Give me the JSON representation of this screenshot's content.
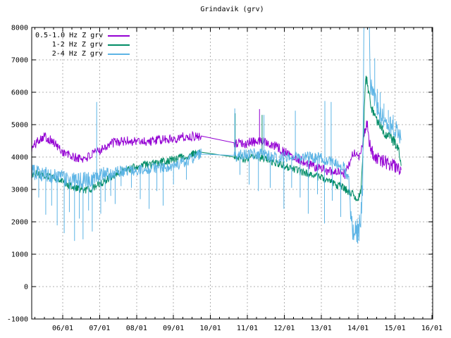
{
  "chart_data": {
    "type": "line",
    "title": "Grindavik (grv)",
    "xlabel": "",
    "ylabel": "",
    "grid": true,
    "legend_position": "top-left",
    "ylim": [
      -1000,
      8000
    ],
    "y_ticks": [
      -1000,
      0,
      1000,
      2000,
      3000,
      4000,
      5000,
      6000,
      7000,
      8000
    ],
    "xlim_days": [
      5.16,
      16.02
    ],
    "x_tick_days": [
      6,
      7,
      8,
      9,
      10,
      11,
      12,
      13,
      14,
      15,
      16
    ],
    "x_tick_labels": [
      "06/01",
      "07/01",
      "08/01",
      "09/01",
      "10/01",
      "11/01",
      "12/01",
      "13/01",
      "14/01",
      "15/01",
      "16/01"
    ],
    "x_minor_tick_step_days": 0.25,
    "data_gap_days": [
      9.75,
      10.64
    ],
    "series": [
      {
        "name": "0.5-1.0 Hz Z grv",
        "color": "#9400d3",
        "noise": 150,
        "noise_zones": [
          [
            14.3,
            15.18,
            210
          ]
        ],
        "baseline": [
          [
            5.16,
            4250
          ],
          [
            5.35,
            4550
          ],
          [
            5.5,
            4650
          ],
          [
            5.7,
            4500
          ],
          [
            6.0,
            4160
          ],
          [
            6.3,
            3980
          ],
          [
            6.55,
            3950
          ],
          [
            6.8,
            4060
          ],
          [
            7.1,
            4300
          ],
          [
            7.4,
            4460
          ],
          [
            7.8,
            4500
          ],
          [
            8.3,
            4480
          ],
          [
            8.8,
            4540
          ],
          [
            9.2,
            4610
          ],
          [
            9.75,
            4650
          ],
          [
            10.64,
            4440
          ],
          [
            10.9,
            4420
          ],
          [
            11.2,
            4470
          ],
          [
            11.5,
            4490
          ],
          [
            11.75,
            4350
          ],
          [
            12.0,
            4160
          ],
          [
            12.3,
            4000
          ],
          [
            12.6,
            3810
          ],
          [
            12.9,
            3660
          ],
          [
            13.2,
            3590
          ],
          [
            13.5,
            3500
          ],
          [
            13.65,
            3450
          ],
          [
            13.8,
            3950
          ],
          [
            13.9,
            4150
          ],
          [
            14.0,
            3950
          ],
          [
            14.1,
            4300
          ],
          [
            14.2,
            4900
          ],
          [
            14.25,
            5050
          ],
          [
            14.3,
            4420
          ],
          [
            14.38,
            4130
          ],
          [
            14.5,
            3960
          ],
          [
            14.7,
            3860
          ],
          [
            14.9,
            3760
          ],
          [
            15.05,
            3680
          ],
          [
            15.17,
            3480
          ]
        ],
        "spikes_up": [
          [
            11.33,
            5480
          ]
        ],
        "spikes_down": []
      },
      {
        "name": "1-2 Hz Z grv",
        "color": "#008c66",
        "noise": 125,
        "noise_zones": [
          [
            14.16,
            14.32,
            250
          ],
          [
            14.33,
            15.17,
            180
          ]
        ],
        "baseline": [
          [
            5.16,
            3500
          ],
          [
            5.5,
            3460
          ],
          [
            5.8,
            3340
          ],
          [
            6.1,
            3150
          ],
          [
            6.4,
            3030
          ],
          [
            6.7,
            2980
          ],
          [
            7.0,
            3160
          ],
          [
            7.3,
            3380
          ],
          [
            7.6,
            3560
          ],
          [
            8.0,
            3700
          ],
          [
            8.4,
            3790
          ],
          [
            8.8,
            3880
          ],
          [
            9.2,
            3990
          ],
          [
            9.75,
            4150
          ],
          [
            10.64,
            4000
          ],
          [
            10.9,
            3950
          ],
          [
            11.2,
            4010
          ],
          [
            11.5,
            3950
          ],
          [
            11.8,
            3810
          ],
          [
            12.1,
            3690
          ],
          [
            12.4,
            3560
          ],
          [
            12.7,
            3460
          ],
          [
            13.0,
            3350
          ],
          [
            13.3,
            3200
          ],
          [
            13.6,
            3060
          ],
          [
            13.85,
            2840
          ],
          [
            14.0,
            2720
          ],
          [
            14.08,
            3000
          ],
          [
            14.14,
            4300
          ],
          [
            14.19,
            6200
          ],
          [
            14.23,
            6450
          ],
          [
            14.3,
            5900
          ],
          [
            14.38,
            5450
          ],
          [
            14.5,
            5080
          ],
          [
            14.65,
            4870
          ],
          [
            14.8,
            4680
          ],
          [
            14.95,
            4520
          ],
          [
            15.05,
            4380
          ],
          [
            15.12,
            4100
          ],
          [
            15.17,
            3820
          ]
        ],
        "spikes_up": [
          [
            10.67,
            5350
          ],
          [
            11.4,
            5300
          ]
        ],
        "spikes_down": []
      },
      {
        "name": "2-4 Hz Z grv",
        "color": "#5db4e5",
        "noise": 180,
        "noise_zones": [
          [
            5.16,
            7.3,
            250
          ],
          [
            13.78,
            14.12,
            450
          ],
          [
            14.16,
            14.3,
            150
          ],
          [
            14.33,
            15.17,
            290
          ]
        ],
        "baseline": [
          [
            5.16,
            3520
          ],
          [
            5.5,
            3480
          ],
          [
            5.8,
            3430
          ],
          [
            6.1,
            3310
          ],
          [
            6.4,
            3270
          ],
          [
            6.7,
            3310
          ],
          [
            7.0,
            3420
          ],
          [
            7.3,
            3500
          ],
          [
            7.6,
            3560
          ],
          [
            8.0,
            3610
          ],
          [
            8.4,
            3660
          ],
          [
            8.8,
            3710
          ],
          [
            9.2,
            3800
          ],
          [
            9.75,
            4090
          ],
          [
            10.64,
            4050
          ],
          [
            10.9,
            4050
          ],
          [
            11.2,
            4100
          ],
          [
            11.5,
            4050
          ],
          [
            11.8,
            3960
          ],
          [
            12.1,
            4010
          ],
          [
            12.4,
            4050
          ],
          [
            12.7,
            4010
          ],
          [
            13.0,
            3960
          ],
          [
            13.3,
            3860
          ],
          [
            13.6,
            3710
          ],
          [
            13.75,
            3250
          ],
          [
            13.82,
            1800
          ],
          [
            13.95,
            1550
          ],
          [
            14.05,
            1900
          ],
          [
            14.12,
            2900
          ],
          [
            14.16,
            8300
          ],
          [
            14.3,
            8300
          ],
          [
            14.33,
            6300
          ],
          [
            14.4,
            5900
          ],
          [
            14.5,
            5550
          ],
          [
            14.6,
            5320
          ],
          [
            14.75,
            5120
          ],
          [
            14.9,
            4980
          ],
          [
            15.0,
            4900
          ],
          [
            15.1,
            4720
          ],
          [
            15.17,
            4480
          ]
        ],
        "spikes_up": [
          [
            6.92,
            5700
          ],
          [
            10.66,
            5500
          ],
          [
            11.45,
            5300
          ],
          [
            12.3,
            5430
          ],
          [
            13.1,
            5730
          ],
          [
            13.27,
            5700
          ],
          [
            14.45,
            7050
          ],
          [
            14.52,
            6100
          ],
          [
            14.6,
            6000
          ],
          [
            14.7,
            5650
          ],
          [
            14.82,
            5450
          ],
          [
            14.95,
            5300
          ]
        ],
        "spikes_down": [
          [
            5.35,
            2750
          ],
          [
            5.54,
            2220
          ],
          [
            5.7,
            2500
          ],
          [
            5.85,
            1890
          ],
          [
            6.04,
            1650
          ],
          [
            6.18,
            2300
          ],
          [
            6.32,
            1410
          ],
          [
            6.45,
            2100
          ],
          [
            6.55,
            1460
          ],
          [
            6.7,
            2350
          ],
          [
            6.8,
            1700
          ],
          [
            7.03,
            2250
          ],
          [
            7.15,
            2620
          ],
          [
            7.3,
            2800
          ],
          [
            7.42,
            2550
          ],
          [
            7.58,
            3100
          ],
          [
            7.86,
            3050
          ],
          [
            8.1,
            2700
          ],
          [
            8.34,
            2400
          ],
          [
            8.55,
            2950
          ],
          [
            8.72,
            2500
          ],
          [
            9.0,
            3150
          ],
          [
            9.35,
            3300
          ],
          [
            10.8,
            3450
          ],
          [
            11.05,
            3150
          ],
          [
            11.3,
            2950
          ],
          [
            11.62,
            3050
          ],
          [
            11.99,
            2400
          ],
          [
            12.2,
            3050
          ],
          [
            12.43,
            2750
          ],
          [
            12.65,
            2250
          ],
          [
            12.9,
            2850
          ],
          [
            13.09,
            1950
          ],
          [
            13.3,
            2650
          ],
          [
            13.53,
            2150
          ]
        ]
      }
    ],
    "colors": {
      "grid": "#b0b0b0",
      "border": "#000000",
      "background": "#ffffff"
    }
  }
}
